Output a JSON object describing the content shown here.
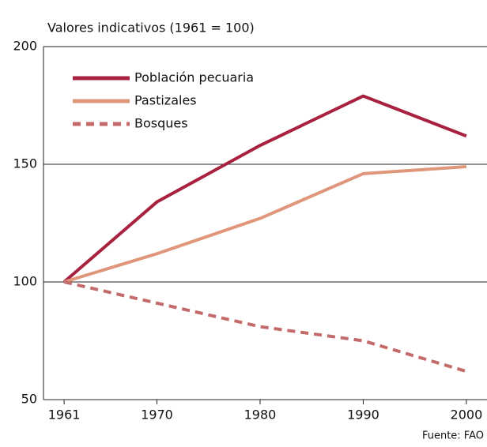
{
  "chart_data": {
    "type": "line",
    "y_label": "Valores indicativos (1961 = 100)",
    "source": "Fuente: FAO",
    "x": [
      1961,
      1970,
      1980,
      1990,
      2000
    ],
    "xlim": [
      1959,
      2002
    ],
    "xticks": [
      1961,
      1970,
      1980,
      1990,
      2000
    ],
    "ylim": [
      50,
      200
    ],
    "yticks": [
      50,
      100,
      150,
      200
    ],
    "grid": true,
    "legend": "top-left",
    "series": [
      {
        "name": "Población pecuaria",
        "color": "#a8213f",
        "style": "solid",
        "values": [
          100,
          134,
          158,
          179,
          162
        ]
      },
      {
        "name": "Pastizales",
        "color": "#e0967a",
        "style": "solid",
        "values": [
          100,
          112,
          127,
          146,
          149
        ]
      },
      {
        "name": "Bosques",
        "color": "#c46a6a",
        "style": "dashed",
        "values": [
          100,
          91,
          81,
          75,
          62
        ]
      }
    ]
  }
}
